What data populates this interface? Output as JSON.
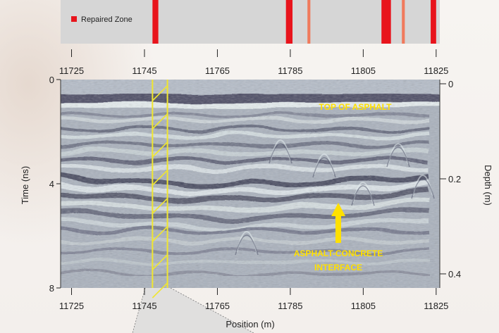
{
  "chart_data": {
    "type": "radargram",
    "legend": {
      "label": "Repaired Zone",
      "color": "#e8141c"
    },
    "repair_strip": {
      "x_range": [
        11722,
        11826
      ],
      "zones": [
        {
          "start": 11747.2,
          "end": 11748.8,
          "intensity": "high"
        },
        {
          "start": 11783.8,
          "end": 11785.6,
          "intensity": "high"
        },
        {
          "start": 11789.7,
          "end": 11790.5,
          "intensity": "low"
        },
        {
          "start": 11810.0,
          "end": 11812.6,
          "intensity": "high"
        },
        {
          "start": 11815.6,
          "end": 11816.4,
          "intensity": "low"
        },
        {
          "start": 11823.5,
          "end": 11825.0,
          "intensity": "high"
        }
      ],
      "ticks": [
        "11725",
        "11745",
        "11765",
        "11785",
        "11805",
        "11825"
      ],
      "tick_values": [
        11725,
        11745,
        11765,
        11785,
        11805,
        11825
      ]
    },
    "radargram": {
      "x_range": [
        11722,
        11826
      ],
      "xlabel": "Position (m)",
      "x_ticks": [
        "11725",
        "11745",
        "11765",
        "11785",
        "11805",
        "11825"
      ],
      "x_tick_values": [
        11725,
        11745,
        11765,
        11785,
        11805,
        11825
      ],
      "y_left_label": "Time (ns)",
      "y_left_range": [
        0,
        8
      ],
      "y_left_ticks": [
        "0",
        "4",
        "8"
      ],
      "y_left_tick_values": [
        0,
        4,
        8
      ],
      "y_right_label": "Depth (m)",
      "y_right_range": [
        0,
        0.4
      ],
      "y_right_ticks": [
        "0",
        "0.2",
        "0.4"
      ],
      "y_right_tick_values": [
        0,
        0.2,
        0.4
      ],
      "highlight_zone": {
        "start": 11747.2,
        "end": 11751.3
      },
      "annotations": {
        "top": "TOP OF ASPHALT",
        "interface_line1": "ASPHALT-CONCRETE",
        "interface_line2": "INTERFACE"
      },
      "colors": {
        "annotation": "#ffe000",
        "highlight": "#f0e630"
      }
    }
  }
}
